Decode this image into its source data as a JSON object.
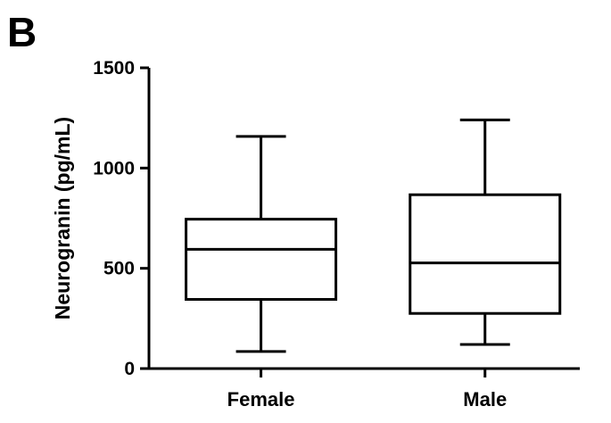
{
  "panel_label": "B",
  "chart_data": {
    "type": "box",
    "title": "",
    "xlabel": "",
    "ylabel": "Neurogranin (pg/mL)",
    "ylim": [
      0,
      1500
    ],
    "yticks": [
      0,
      500,
      1000,
      1500
    ],
    "grid": false,
    "categories": [
      "Female",
      "Male"
    ],
    "boxes": [
      {
        "category": "Female",
        "min": 85,
        "q1": 345,
        "median": 595,
        "q3": 745,
        "max": 1158
      },
      {
        "category": "Male",
        "min": 120,
        "q1": 275,
        "median": 527,
        "q3": 867,
        "max": 1240
      }
    ],
    "colors": {
      "stroke": "#000000",
      "fill": "#ffffff"
    }
  }
}
